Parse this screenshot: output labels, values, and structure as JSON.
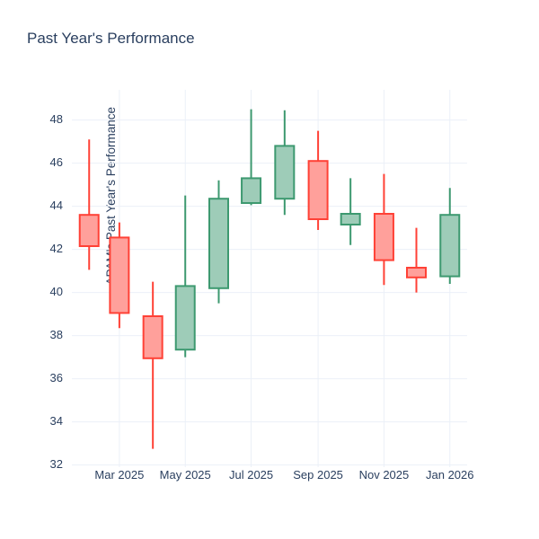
{
  "title": "Past Year's Performance",
  "colors": {
    "text": "#2a3f5f",
    "grid": "#EBF0F8",
    "background": "#ffffff",
    "increasing_line": "#3D9970",
    "increasing_fill": "#9ECCB8",
    "decreasing_line": "#FF4136",
    "decreasing_fill": "#FFA09B"
  },
  "chart_data": {
    "type": "candlestick",
    "title": "Past Year's Performance",
    "ylabel": "APAM's Past Year's Performance",
    "xlabel": "",
    "x": [
      "Feb 2025",
      "Mar 2025",
      "Apr 2025",
      "May 2025",
      "Jun 2025",
      "Jul 2025",
      "Aug 2025",
      "Sep 2025",
      "Oct 2025",
      "Nov 2025",
      "Dec 2025",
      "Jan 2026"
    ],
    "open": [
      43.6,
      42.55,
      38.9,
      37.35,
      40.2,
      44.15,
      44.35,
      46.1,
      43.15,
      43.65,
      41.15,
      40.75
    ],
    "high": [
      47.1,
      43.25,
      40.5,
      44.5,
      45.2,
      48.5,
      48.45,
      47.5,
      45.3,
      45.5,
      43.0,
      44.85
    ],
    "low": [
      41.05,
      38.35,
      32.75,
      37.0,
      39.5,
      44.05,
      43.6,
      42.9,
      42.2,
      40.35,
      40.0,
      40.4
    ],
    "close": [
      42.15,
      39.05,
      36.95,
      40.3,
      44.35,
      45.3,
      46.8,
      43.4,
      43.65,
      41.5,
      40.7,
      43.6
    ],
    "xtick_labels": [
      "Mar 2025",
      "May 2025",
      "Jul 2025",
      "Sep 2025",
      "Nov 2025",
      "Jan 2026"
    ],
    "ytick_values": [
      32,
      34,
      36,
      38,
      40,
      42,
      44,
      46,
      48
    ],
    "ylim": [
      31.9,
      49.4
    ],
    "grid": true,
    "legend": "none"
  }
}
